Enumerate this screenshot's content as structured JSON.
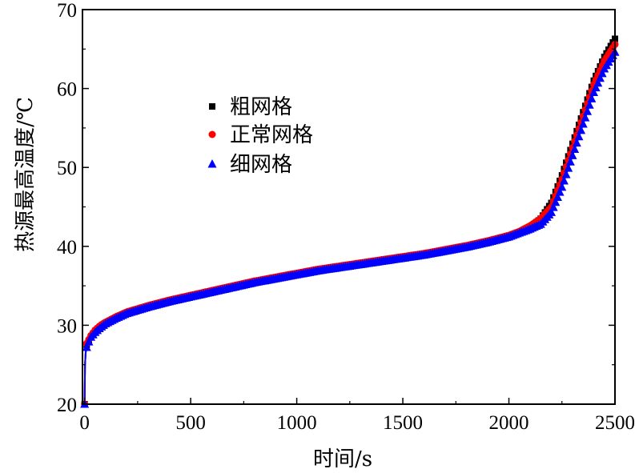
{
  "chart_data": {
    "type": "scatter",
    "xlabel": "时间/s",
    "ylabel": "热源最高温度/℃",
    "xlim": [
      -10,
      2500
    ],
    "ylim": [
      20,
      70
    ],
    "xticks": [
      0,
      500,
      1000,
      1500,
      2000,
      2500
    ],
    "yticks": [
      20,
      30,
      40,
      50,
      60,
      70
    ],
    "x_tick_labels": [
      "0",
      "500",
      "1000",
      "1500",
      "2000",
      "2500"
    ],
    "y_tick_labels": [
      "20",
      "30",
      "40",
      "50",
      "60",
      "70"
    ],
    "grid": false,
    "legend_position": "upper-left-center",
    "x": [
      0,
      2,
      5,
      10,
      20,
      30,
      50,
      75,
      100,
      150,
      200,
      300,
      400,
      500,
      600,
      700,
      800,
      900,
      1000,
      1100,
      1200,
      1300,
      1400,
      1500,
      1600,
      1700,
      1800,
      1900,
      2000,
      2050,
      2100,
      2150,
      2200,
      2250,
      2300,
      2350,
      2400,
      2450,
      2500
    ],
    "series": [
      {
        "name": "粗网格",
        "marker": "square",
        "color": "#000000",
        "values": [
          20.0,
          25.0,
          26.5,
          27.5,
          28.0,
          28.5,
          29.2,
          29.8,
          30.3,
          31.0,
          31.6,
          32.4,
          33.1,
          33.7,
          34.3,
          34.9,
          35.5,
          36.0,
          36.5,
          37.0,
          37.4,
          37.8,
          38.2,
          38.6,
          39.0,
          39.5,
          40.0,
          40.6,
          41.3,
          41.8,
          42.4,
          43.5,
          45.5,
          49.0,
          53.0,
          57.0,
          61.0,
          64.0,
          66.3
        ]
      },
      {
        "name": "正常网格",
        "marker": "circle",
        "color": "#ff0000",
        "values": [
          20.0,
          25.0,
          26.8,
          27.7,
          28.2,
          28.7,
          29.4,
          30.0,
          30.4,
          31.1,
          31.7,
          32.5,
          33.2,
          33.8,
          34.4,
          35.0,
          35.6,
          36.1,
          36.6,
          37.1,
          37.5,
          37.9,
          38.3,
          38.7,
          39.1,
          39.6,
          40.1,
          40.7,
          41.4,
          41.9,
          42.6,
          43.5,
          45.0,
          48.5,
          52.5,
          56.5,
          60.5,
          63.5,
          65.6
        ]
      },
      {
        "name": "细网格",
        "marker": "triangle",
        "color": "#0000ff",
        "values": [
          20.0,
          25.0,
          26.5,
          27.2,
          27.9,
          28.5,
          29.1,
          29.7,
          30.2,
          30.9,
          31.5,
          32.3,
          33.0,
          33.6,
          34.2,
          34.8,
          35.4,
          35.9,
          36.4,
          36.9,
          37.3,
          37.7,
          38.1,
          38.5,
          38.9,
          39.4,
          39.9,
          40.5,
          41.2,
          41.7,
          42.2,
          42.8,
          44.3,
          47.5,
          51.5,
          55.5,
          59.5,
          62.5,
          64.6
        ]
      }
    ]
  }
}
